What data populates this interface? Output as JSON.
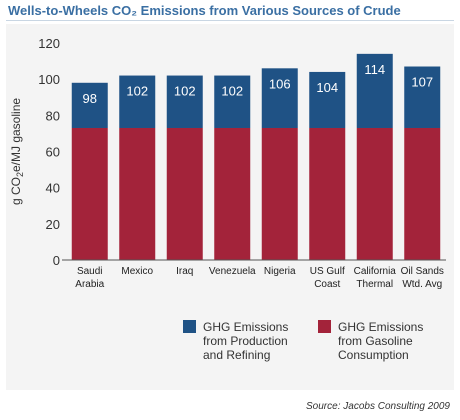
{
  "title": "Wells-to-Wheels CO₂ Emissions from Various Sources of Crude",
  "source": "Source: Jacobs Consulting 2009",
  "colors": {
    "title": "#3a6fa3",
    "production": "#1f5285",
    "consumption": "#a3233a"
  },
  "chart_data": {
    "type": "bar",
    "stacked": true,
    "ylabel": "g CO2e/MJ gasoline",
    "ylim": [
      0,
      120
    ],
    "yticks": [
      0,
      20,
      40,
      60,
      80,
      100,
      120
    ],
    "grid": false,
    "legend_position": "bottom",
    "categories": [
      [
        "Saudi",
        "Arabia"
      ],
      [
        "Mexico"
      ],
      [
        "Iraq"
      ],
      [
        "Venezuela"
      ],
      [
        "Nigeria"
      ],
      [
        "US Gulf",
        "Coast"
      ],
      [
        "California",
        "Thermal"
      ],
      [
        "Oil Sands",
        "Wtd. Avg"
      ]
    ],
    "series": [
      {
        "name": "GHG Emissions from Gasoline Consumption",
        "legend_lines": [
          "GHG Emissions",
          "from Gasoline",
          "Consumption"
        ],
        "values": [
          73,
          73,
          73,
          73,
          73,
          73,
          73,
          73
        ]
      },
      {
        "name": "GHG Emissions from Production and Refining",
        "legend_lines": [
          "GHG Emissions",
          "from Production",
          "and Refining"
        ],
        "values": [
          25,
          29,
          29,
          29,
          33,
          31,
          41,
          34
        ]
      }
    ],
    "totals": [
      98,
      102,
      102,
      102,
      106,
      104,
      114,
      107
    ]
  }
}
